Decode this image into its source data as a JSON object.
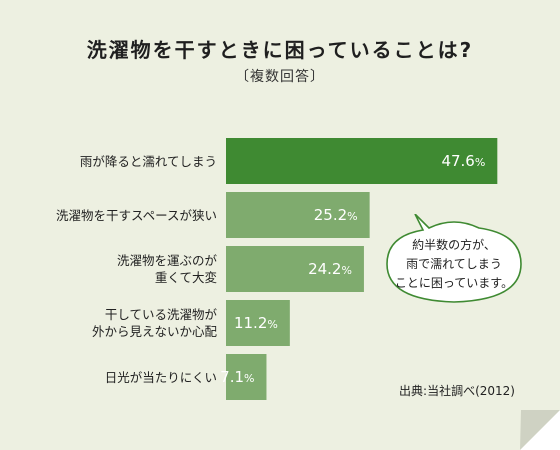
{
  "title": "洗濯物を干すときに困っていることは?",
  "subtitle": "〔複数回答〕",
  "chart_data": {
    "type": "bar",
    "orientation": "horizontal",
    "categories": [
      "雨が降ると濡れてしまう",
      "洗濯物を干すスペースが狭い",
      "洗濯物を運ぶのが\n重くて大変",
      "干している洗濯物が\n外から見えないか心配",
      "日光が当たりにくい"
    ],
    "values": [
      47.6,
      25.2,
      24.2,
      11.2,
      7.1
    ],
    "value_labels": [
      "47.6%",
      "25.2%",
      "24.2%",
      "11.2%",
      "7.1%"
    ],
    "unit": "%",
    "xlim": [
      0,
      50
    ],
    "colors": {
      "highlight": "#3f8a32",
      "normal": "#7fab6e"
    },
    "highlight_index": 0,
    "grid": false,
    "legend": "none"
  },
  "callout": {
    "lines": [
      "約半数の方が、",
      "雨で濡れてしまう",
      "ことに困っています。"
    ]
  },
  "source": "出典:当社調べ(2012)",
  "colors": {
    "background": "#edf0e1",
    "fold": "#cfd2c3"
  }
}
